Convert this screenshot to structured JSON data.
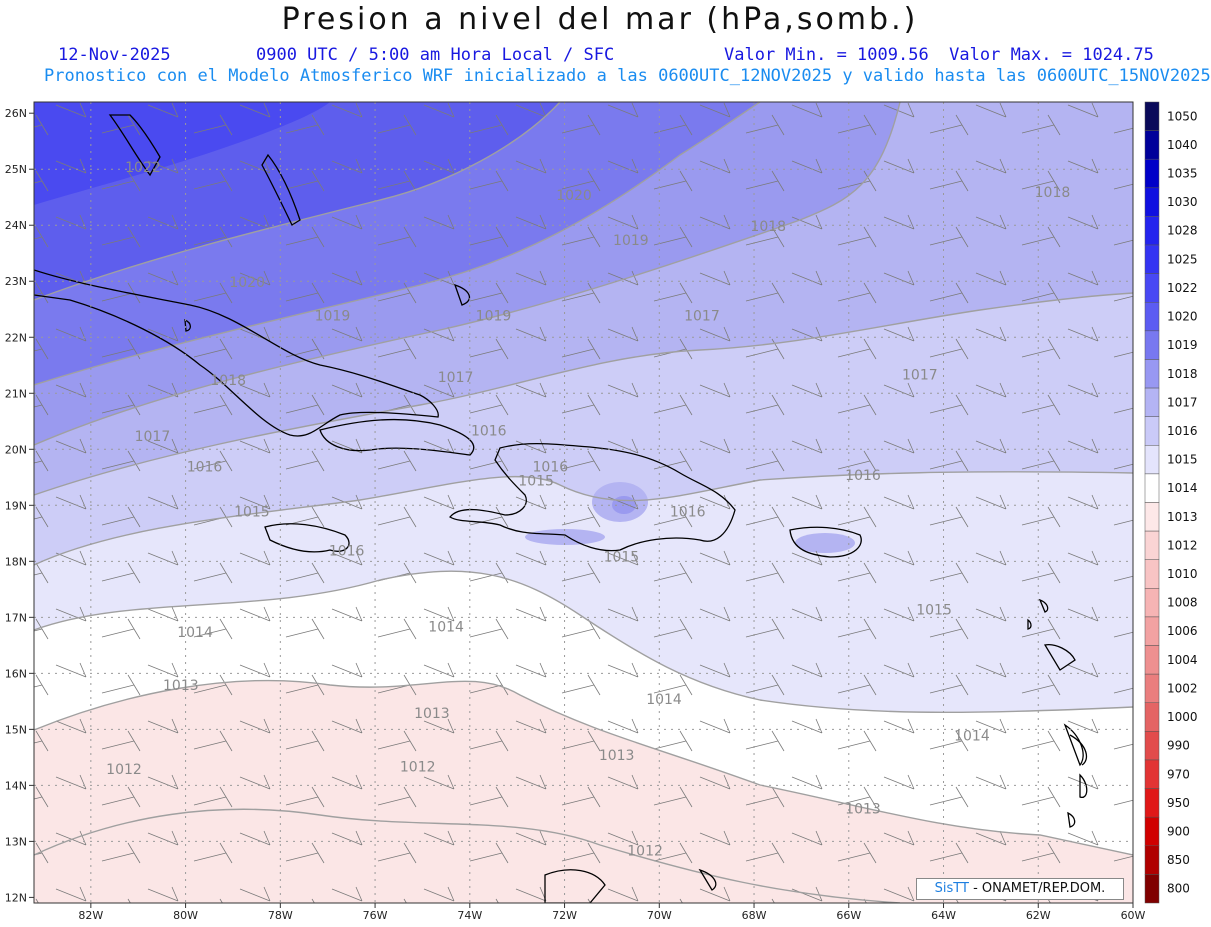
{
  "header": {
    "title": "Presion a nivel del mar (hPa,somb.)",
    "date": "12-Nov-2025",
    "time": "0900 UTC / 5:00 am Hora Local / SFC",
    "min_max": "Valor Min. = 1009.56  Valor Max. = 1024.75",
    "model_info": "Pronostico con el Modelo Atmosferico WRF inicializado a las 0600UTC_12NOV2025 y valido hasta las  0600UTC_15NOV2025"
  },
  "credit": {
    "logo": "SisTT",
    "text": "- ONAMET/REP.DOM."
  },
  "axes": {
    "lon_labels": [
      "82W",
      "80W",
      "78W",
      "76W",
      "74W",
      "72W",
      "70W",
      "68W",
      "66W",
      "64W",
      "62W",
      "60W"
    ],
    "lat_labels": [
      "26N",
      "25N",
      "24N",
      "23N",
      "22N",
      "21N",
      "20N",
      "19N",
      "18N",
      "17N",
      "16N",
      "15N",
      "14N",
      "13N",
      "12N"
    ]
  },
  "colorbar": {
    "levels": [
      "1050",
      "1040",
      "1035",
      "1030",
      "1028",
      "1025",
      "1022",
      "1020",
      "1019",
      "1018",
      "1017",
      "1016",
      "1015",
      "1014",
      "1013",
      "1012",
      "1010",
      "1008",
      "1006",
      "1004",
      "1002",
      "1000",
      "990",
      "970",
      "950",
      "900",
      "850",
      "800"
    ],
    "colors": [
      "#0a0a5a",
      "#00009a",
      "#0000c8",
      "#1010e0",
      "#2424ee",
      "#3434f2",
      "#4848f4",
      "#5c5cf2",
      "#7878f0",
      "#9898f2",
      "#b4b4f4",
      "#cacaf8",
      "#e4e4fc",
      "#ffffff",
      "#fde8e8",
      "#fad4d4",
      "#f8c4c4",
      "#f6b4b4",
      "#f2a2a2",
      "#ee9090",
      "#ea7e7e",
      "#e46464",
      "#e24c4c",
      "#e23434",
      "#e01818",
      "#d00000",
      "#b00000",
      "#800000"
    ]
  },
  "contour_labels": [
    {
      "text": "1022",
      "lon": -80.9,
      "lat": 24.95
    },
    {
      "text": "1020",
      "lon": -71.8,
      "lat": 24.45
    },
    {
      "text": "1020",
      "lon": -78.7,
      "lat": 22.9
    },
    {
      "text": "1019",
      "lon": -70.6,
      "lat": 23.65
    },
    {
      "text": "1019",
      "lon": -76.9,
      "lat": 22.3
    },
    {
      "text": "1019",
      "lon": -73.5,
      "lat": 22.3
    },
    {
      "text": "1018",
      "lon": -67.7,
      "lat": 23.9
    },
    {
      "text": "1018",
      "lon": -61.7,
      "lat": 24.5
    },
    {
      "text": "1018",
      "lon": -79.1,
      "lat": 21.15
    },
    {
      "text": "1017",
      "lon": -69.1,
      "lat": 22.3
    },
    {
      "text": "1017",
      "lon": -74.3,
      "lat": 21.2
    },
    {
      "text": "1017",
      "lon": -64.5,
      "lat": 21.25
    },
    {
      "text": "1017",
      "lon": -80.7,
      "lat": 20.15
    },
    {
      "text": "1016",
      "lon": -73.6,
      "lat": 20.25
    },
    {
      "text": "1016",
      "lon": -79.6,
      "lat": 19.6
    },
    {
      "text": "1016",
      "lon": -72.3,
      "lat": 19.6
    },
    {
      "text": "1016",
      "lon": -65.7,
      "lat": 19.45
    },
    {
      "text": "1016",
      "lon": -69.4,
      "lat": 18.8
    },
    {
      "text": "1016",
      "lon": -76.6,
      "lat": 18.1
    },
    {
      "text": "1015",
      "lon": -72.6,
      "lat": 19.35
    },
    {
      "text": "1015",
      "lon": -78.6,
      "lat": 18.8
    },
    {
      "text": "1015",
      "lon": -70.8,
      "lat": 18.0
    },
    {
      "text": "1015",
      "lon": -64.2,
      "lat": 17.05
    },
    {
      "text": "1014",
      "lon": -79.8,
      "lat": 16.65
    },
    {
      "text": "1014",
      "lon": -74.5,
      "lat": 16.75
    },
    {
      "text": "1014",
      "lon": -69.9,
      "lat": 15.45
    },
    {
      "text": "1014",
      "lon": -63.4,
      "lat": 14.8
    },
    {
      "text": "1013",
      "lon": -80.1,
      "lat": 15.7
    },
    {
      "text": "1013",
      "lon": -74.8,
      "lat": 15.2
    },
    {
      "text": "1013",
      "lon": -70.9,
      "lat": 14.45
    },
    {
      "text": "1013",
      "lon": -65.7,
      "lat": 13.5
    },
    {
      "text": "1012",
      "lon": -81.3,
      "lat": 14.2
    },
    {
      "text": "1012",
      "lon": -75.1,
      "lat": 14.25
    },
    {
      "text": "1012",
      "lon": -70.3,
      "lat": 12.75
    }
  ]
}
